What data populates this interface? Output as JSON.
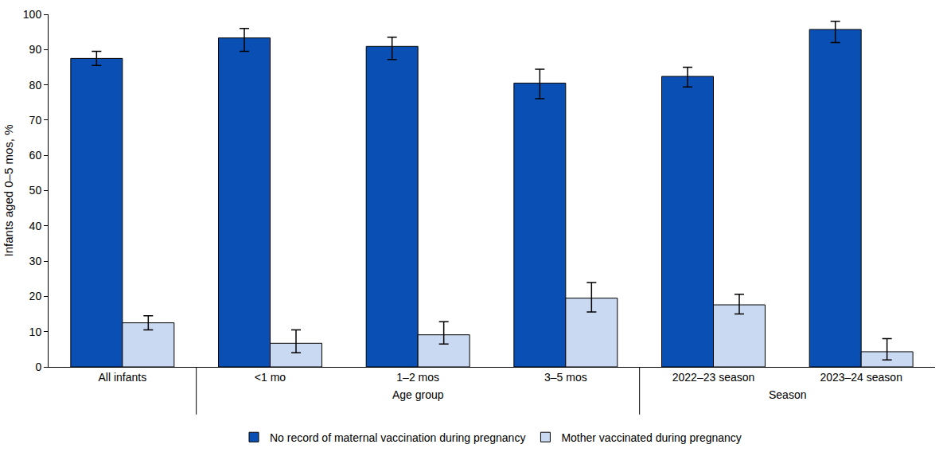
{
  "chart_data": {
    "type": "bar",
    "y_label": "Infants aged 0–5 mos, %",
    "categories": [
      "All infants",
      "<1 mo",
      "1–2 mos",
      "3–5 mos",
      "2022–23 season",
      "2023–24 season"
    ],
    "category_groups": [
      {
        "label": "Age group",
        "categories": [
          "<1 mo",
          "1–2 mos",
          "3–5 mos"
        ]
      },
      {
        "label": "Season",
        "categories": [
          "2022–23 season",
          "2023–24 season"
        ]
      }
    ],
    "series": [
      {
        "name": "No record of maternal vaccination during pregnancy",
        "color": "#0a50b4",
        "values": [
          87.5,
          93.3,
          90.9,
          80.5,
          82.4,
          95.7
        ],
        "ci_lower": [
          85.5,
          89.5,
          87.2,
          76.1,
          79.4,
          92.0
        ],
        "ci_upper": [
          89.5,
          96.0,
          93.5,
          84.4,
          85.0,
          98.0
        ]
      },
      {
        "name": "Mother vaccinated during pregnancy",
        "color": "#c9d9f1",
        "values": [
          12.5,
          6.7,
          9.1,
          19.5,
          17.6,
          4.3
        ],
        "ci_lower": [
          10.5,
          4.0,
          6.5,
          15.6,
          15.0,
          2.0
        ],
        "ci_upper": [
          14.5,
          10.5,
          12.8,
          23.9,
          20.6,
          8.0
        ]
      }
    ],
    "ylim": [
      0,
      100
    ],
    "yticks": [
      0,
      10,
      20,
      30,
      40,
      50,
      60,
      70,
      80,
      90,
      100
    ],
    "grid": false,
    "legend": "bottom"
  }
}
